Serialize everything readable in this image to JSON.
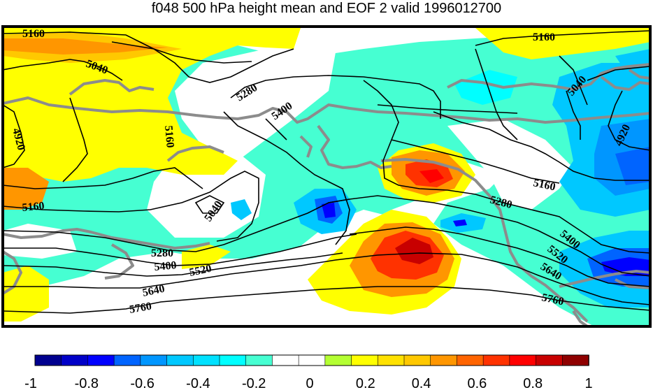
{
  "title": "f048 500 hPa height mean and EOF 2 valid 1996012700",
  "colors": {
    "coast": "#8c8c8c",
    "contour": "#000000",
    "frame": "#000000"
  },
  "contour_labels": [
    {
      "text": "5160",
      "rot": 0
    },
    {
      "text": "5040",
      "rot": 20
    },
    {
      "text": "5160",
      "rot": 0
    },
    {
      "text": "5040",
      "rot": -48
    },
    {
      "text": "4920",
      "rot": 75
    },
    {
      "text": "5280",
      "rot": -32
    },
    {
      "text": "5400",
      "rot": -35
    },
    {
      "text": "5160",
      "rot": 85
    },
    {
      "text": "4920",
      "rot": -65
    },
    {
      "text": "5040",
      "rot": -55
    },
    {
      "text": "5160",
      "rot": -5
    },
    {
      "text": "5160",
      "rot": 12
    },
    {
      "text": "5280",
      "rot": 15
    },
    {
      "text": "5280",
      "rot": 0
    },
    {
      "text": "5400",
      "rot": -5
    },
    {
      "text": "5520",
      "rot": -12
    },
    {
      "text": "5640",
      "rot": -12
    },
    {
      "text": "5760",
      "rot": -10
    },
    {
      "text": "5400",
      "rot": 40
    },
    {
      "text": "5520",
      "rot": 38
    },
    {
      "text": "5640",
      "rot": 32
    },
    {
      "text": "5760",
      "rot": 12
    }
  ],
  "colorbar": {
    "colors": [
      "#00008f",
      "#0000c8",
      "#0000ff",
      "#0064ff",
      "#0096ff",
      "#00c8ff",
      "#00e1ff",
      "#00ffff",
      "#46ffd2",
      "#ffffff",
      "#ffffff",
      "#b4ff32",
      "#ffff00",
      "#ffe100",
      "#ffc800",
      "#ff9600",
      "#ff6400",
      "#ff3200",
      "#ff0000",
      "#c80000",
      "#8f0000"
    ],
    "ticks": [
      "-1",
      "-0.8",
      "-0.6",
      "-0.4",
      "-0.2",
      "0",
      "0.2",
      "0.4",
      "0.6",
      "0.8",
      "1"
    ]
  }
}
